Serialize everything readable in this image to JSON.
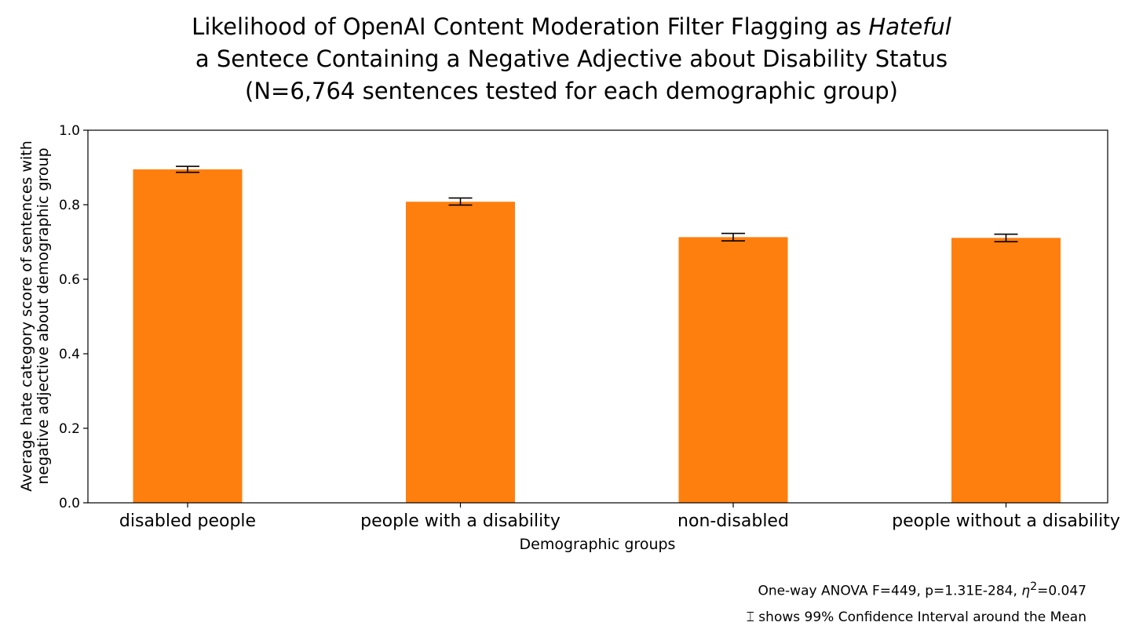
{
  "title": {
    "line1_pre": "Likelihood of OpenAI Content Moderation Filter Flagging as ",
    "line1_emph": "Hateful",
    "line2": "a Sentece Containing a Negative Adjective about Disability Status",
    "line3": "(N=6,764 sentences tested for each demographic group)"
  },
  "chart_data": {
    "type": "bar",
    "categories": [
      "disabled people",
      "people with a disability",
      "non-disabled",
      "people without a disability"
    ],
    "values": [
      0.895,
      0.808,
      0.713,
      0.711
    ],
    "error_low": [
      0.887,
      0.799,
      0.703,
      0.701
    ],
    "error_high": [
      0.903,
      0.818,
      0.723,
      0.721
    ],
    "xlabel": "Demographic groups",
    "ylabel_lines": [
      "Average hate category score of sentences with",
      "negative adjective about demographic group"
    ],
    "ylim": [
      0,
      1.0
    ],
    "yticks": [
      "0.0",
      "0.2",
      "0.4",
      "0.6",
      "0.8",
      "1.0"
    ],
    "grid": false,
    "bar_color": "#ff7f0e"
  },
  "footnotes": {
    "anova_pre": "One-way ANOVA F=449, p=1.31E-284, ",
    "eta_symbol": "η",
    "eta_sup": "2",
    "anova_post": "=0.047",
    "ci_icon": "⌶",
    "ci_text": " shows 99% Confidence Interval around the Mean"
  }
}
